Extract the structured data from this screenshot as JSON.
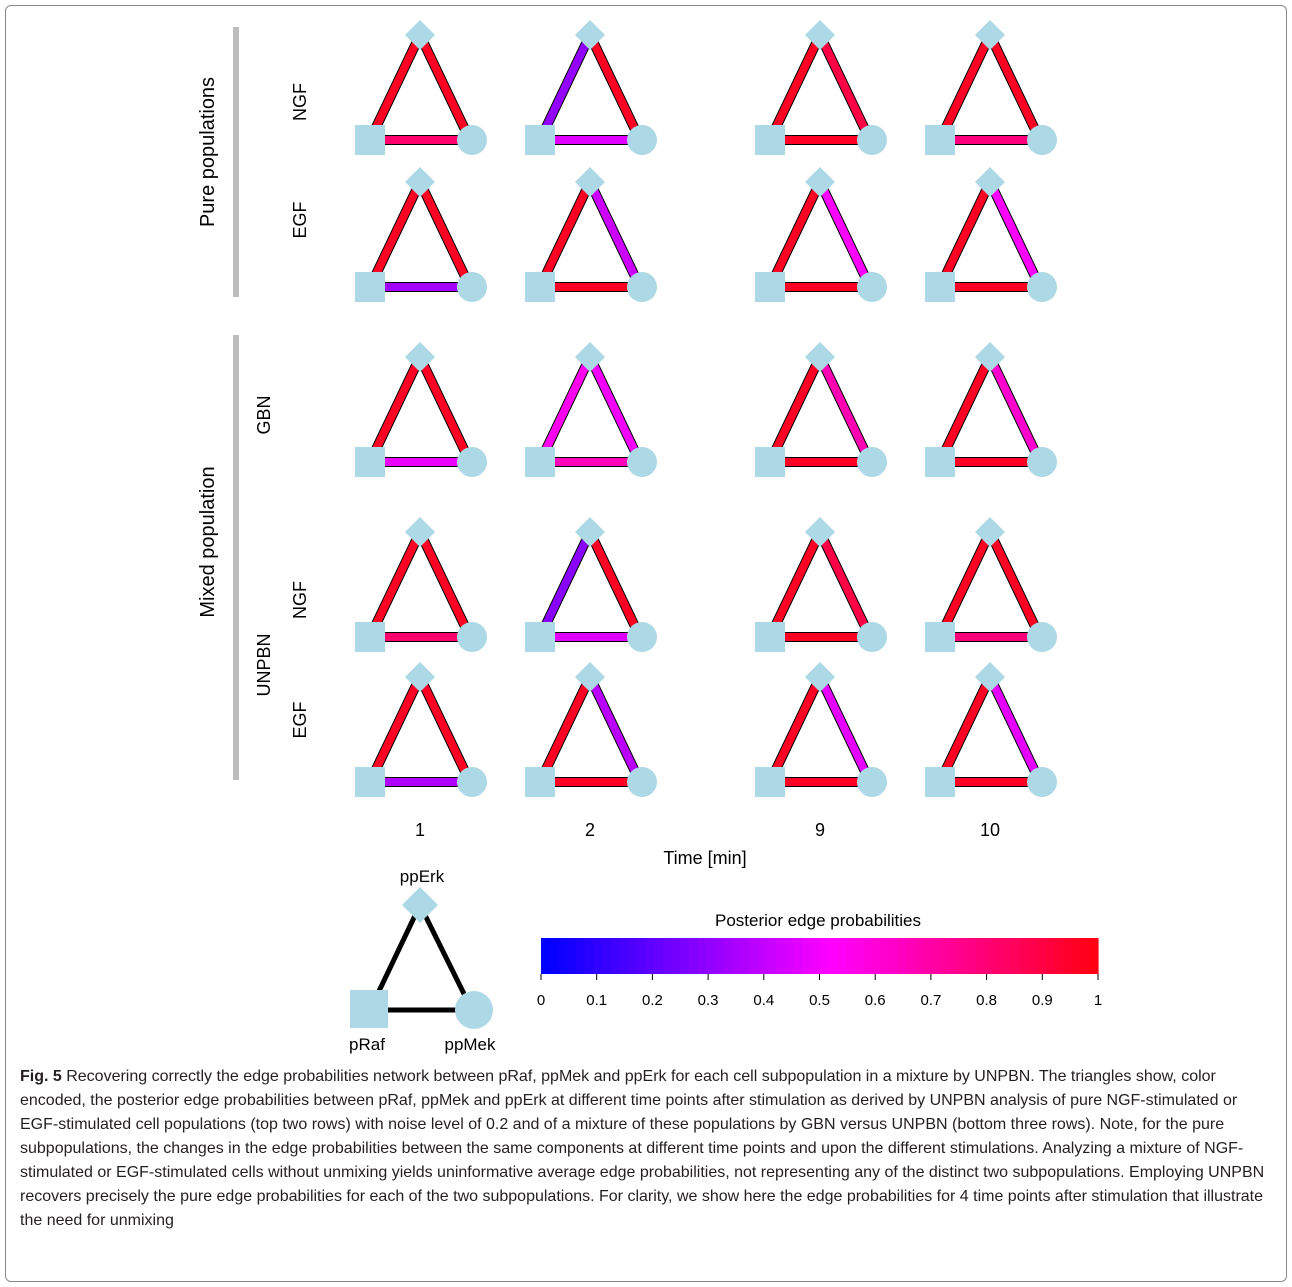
{
  "figure": {
    "row_labels": {
      "pure_group": "Pure populations",
      "mixed_group": "Mixed population",
      "ngf": "NGF",
      "egf": "EGF",
      "gbn": "GBN",
      "unpbn": "UNPBN"
    },
    "time_points": [
      "1",
      "2",
      "9",
      "10"
    ],
    "time_axis_label": "Time [min]",
    "rows": [
      {
        "group": "Pure populations",
        "label": "NGF",
        "edges": [
          {
            "pRaf_ppErk": 0.97,
            "ppErk_ppMek": 0.97,
            "pRaf_ppMek": 0.82
          },
          {
            "pRaf_ppErk": 0.3,
            "ppErk_ppMek": 0.97,
            "pRaf_ppMek": 0.46
          },
          {
            "pRaf_ppErk": 0.97,
            "ppErk_ppMek": 0.9,
            "pRaf_ppMek": 0.97
          },
          {
            "pRaf_ppErk": 0.97,
            "ppErk_ppMek": 0.97,
            "pRaf_ppMek": 0.79
          }
        ]
      },
      {
        "group": "Pure populations",
        "label": "EGF",
        "edges": [
          {
            "pRaf_ppErk": 0.97,
            "ppErk_ppMek": 0.97,
            "pRaf_ppMek": 0.33
          },
          {
            "pRaf_ppErk": 0.97,
            "ppErk_ppMek": 0.42,
            "pRaf_ppMek": 0.97
          },
          {
            "pRaf_ppErk": 0.97,
            "ppErk_ppMek": 0.52,
            "pRaf_ppMek": 0.97
          },
          {
            "pRaf_ppErk": 0.97,
            "ppErk_ppMek": 0.52,
            "pRaf_ppMek": 0.97
          }
        ]
      },
      {
        "group": "Mixed population",
        "label": "GBN",
        "edges": [
          {
            "pRaf_ppErk": 0.97,
            "ppErk_ppMek": 0.97,
            "pRaf_ppMek": 0.48
          },
          {
            "pRaf_ppErk": 0.55,
            "ppErk_ppMek": 0.5,
            "pRaf_ppMek": 0.66
          },
          {
            "pRaf_ppErk": 0.97,
            "ppErk_ppMek": 0.68,
            "pRaf_ppMek": 0.97
          },
          {
            "pRaf_ppErk": 0.97,
            "ppErk_ppMek": 0.62,
            "pRaf_ppMek": 0.97
          }
        ]
      },
      {
        "group": "Mixed population",
        "label": "UNPBN NGF",
        "edges": [
          {
            "pRaf_ppErk": 0.97,
            "ppErk_ppMek": 0.97,
            "pRaf_ppMek": 0.82
          },
          {
            "pRaf_ppErk": 0.28,
            "ppErk_ppMek": 0.97,
            "pRaf_ppMek": 0.46
          },
          {
            "pRaf_ppErk": 0.97,
            "ppErk_ppMek": 0.9,
            "pRaf_ppMek": 0.97
          },
          {
            "pRaf_ppErk": 0.97,
            "ppErk_ppMek": 0.97,
            "pRaf_ppMek": 0.79
          }
        ]
      },
      {
        "group": "Mixed population",
        "label": "UNPBN EGF",
        "edges": [
          {
            "pRaf_ppErk": 0.97,
            "ppErk_ppMek": 0.97,
            "pRaf_ppMek": 0.36
          },
          {
            "pRaf_ppErk": 0.97,
            "ppErk_ppMek": 0.38,
            "pRaf_ppMek": 0.97
          },
          {
            "pRaf_ppErk": 0.97,
            "ppErk_ppMek": 0.47,
            "pRaf_ppMek": 0.97
          },
          {
            "pRaf_ppErk": 0.97,
            "ppErk_ppMek": 0.47,
            "pRaf_ppMek": 0.97
          }
        ]
      }
    ],
    "legend": {
      "node_top": "ppErk",
      "node_left": "pRaf",
      "node_right": "ppMek"
    },
    "colorbar": {
      "title": "Posterior edge probabilities",
      "ticks": [
        "0",
        "0.1",
        "0.2",
        "0.3",
        "0.4",
        "0.5",
        "0.6",
        "0.7",
        "0.8",
        "0.9",
        "1"
      ],
      "range": [
        0,
        1
      ]
    },
    "colors": {
      "node": "#add8e6",
      "edge_outline": "#000000",
      "group_bar": "#bdbdbd"
    }
  },
  "caption": {
    "label": "Fig. 5",
    "text": " Recovering correctly the edge probabilities network between pRaf, ppMek and ppErk for each cell subpopulation in a mixture by UNPBN. The triangles show, color encoded, the posterior edge probabilities between pRaf, ppMek and ppErk at different time points after stimulation as derived by UNPBN analysis of pure NGF-stimulated or EGF-stimulated cell populations (top two rows) with noise level of 0.2 and of a mixture of these populations by GBN versus UNPBN (bottom three rows). Note, for the pure subpopulations, the changes in the edge probabilities between the same components at different time points and upon the different stimulations. Analyzing a mixture of NGF-stimulated or EGF-stimulated cells without unmixing yields uninformative average edge probabilities, not representing any of the distinct two subpopulations. Employing UNPBN recovers precisely the pure edge probabilities for each of the two subpopulations. For clarity, we show here the edge probabilities for 4 time points after stimulation that illustrate the need for unmixing"
  }
}
